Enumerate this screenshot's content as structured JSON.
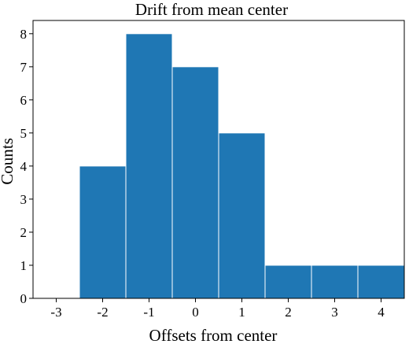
{
  "chart_data": {
    "type": "bar",
    "title": "Drift from mean center",
    "xlabel": "Offsets from center",
    "ylabel": "Counts",
    "categories": [
      "-3",
      "-2",
      "-1",
      "0",
      "1",
      "2",
      "3",
      "4"
    ],
    "x": [
      -3,
      -2,
      -1,
      0,
      1,
      2,
      3,
      4
    ],
    "values": [
      0,
      4,
      8,
      7,
      5,
      1,
      1,
      1
    ],
    "xlim": [
      -3.5,
      4.5
    ],
    "ylim": [
      0,
      8.4
    ],
    "yticks": [
      "0",
      "1",
      "2",
      "3",
      "4",
      "5",
      "6",
      "7",
      "8"
    ],
    "grid": false,
    "bar_color": "#1f77b4"
  }
}
